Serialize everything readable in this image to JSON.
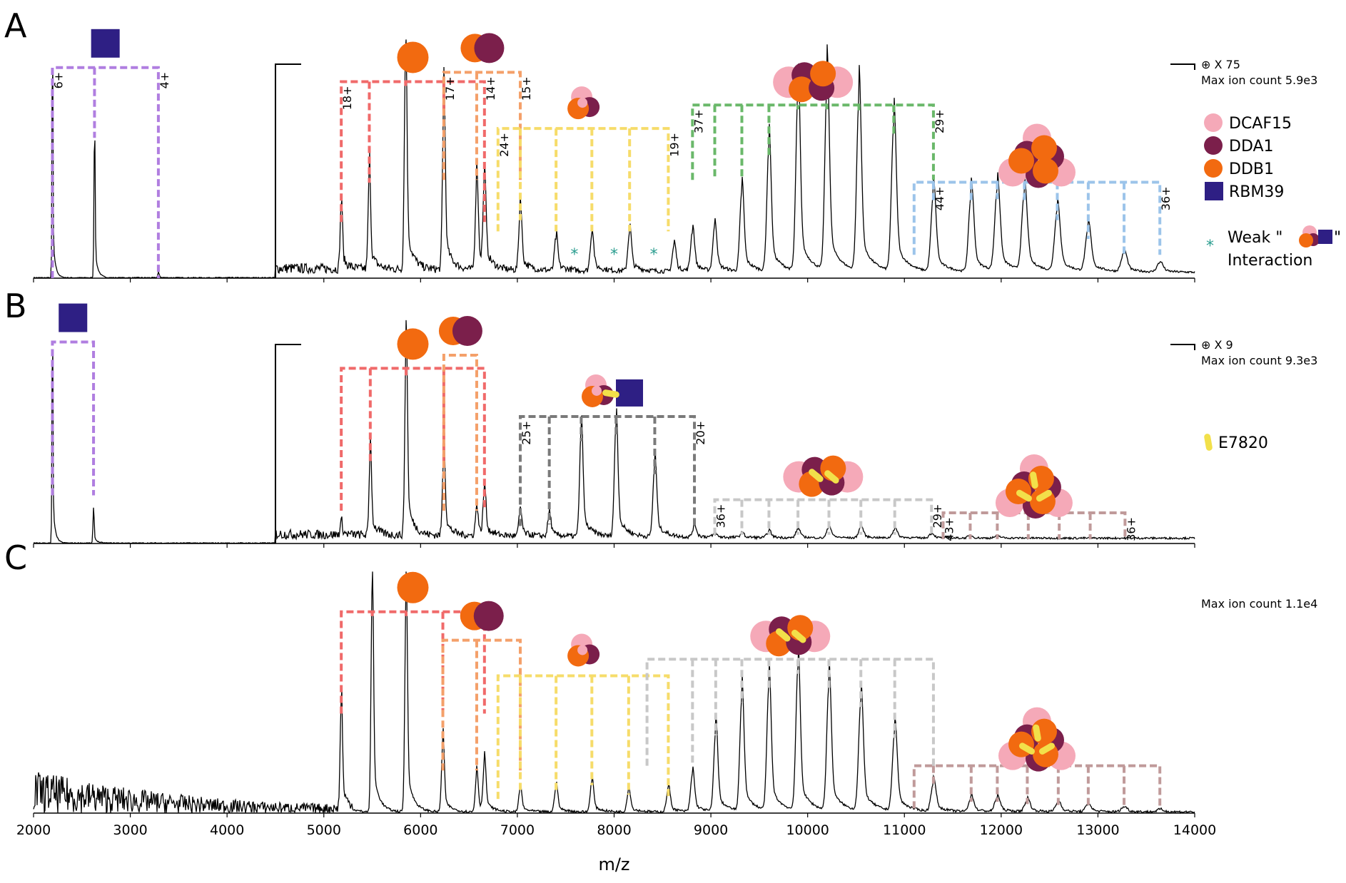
{
  "chart_data": {
    "type": "line",
    "xlabel": "m/z",
    "xlim": [
      2000,
      14000
    ],
    "xticks": [
      2000,
      3000,
      4000,
      5000,
      6000,
      7000,
      8000,
      9000,
      10000,
      11000,
      12000,
      13000,
      14000
    ],
    "colors": {
      "DCAF15": "#f5a9b8",
      "DDA1": "#7b1f4b",
      "DDB1": "#f26a10",
      "RBM39": "#2e1f84",
      "E7820": "#f2e04a",
      "weak_star": "#2a9d8f",
      "purple_series": "#b07ee0",
      "red_series": "#f06a6a",
      "orange_series": "#f4a06a",
      "yellow_series": "#f6dc6a",
      "green_series": "#6ab86a",
      "blue_series": "#9cc4ea",
      "darkgray_series": "#7a7a7a",
      "lightgray_series": "#c8c8c8",
      "mauve_series": "#c09a9a"
    },
    "panels": [
      {
        "label": "A",
        "zoom": "⊕ X 75",
        "max_ion": "Max ion count 5.9e3",
        "zoom_break_mz": 4500,
        "peaks": [
          {
            "mz": 2195,
            "h": 1.0
          },
          {
            "mz": 2630,
            "h": 0.62
          },
          {
            "mz": 3290,
            "h": 0.02
          },
          {
            "mz": 5180,
            "h": 0.28
          },
          {
            "mz": 5470,
            "h": 0.42
          },
          {
            "mz": 5845,
            "h": 0.95
          },
          {
            "mz": 6240,
            "h": 0.72
          },
          {
            "mz": 6580,
            "h": 0.38
          },
          {
            "mz": 6660,
            "h": 0.36
          },
          {
            "mz": 7030,
            "h": 0.26
          },
          {
            "mz": 7400,
            "h": 0.14
          },
          {
            "mz": 7770,
            "h": 0.16
          },
          {
            "mz": 8160,
            "h": 0.17
          },
          {
            "mz": 8620,
            "h": 0.11
          },
          {
            "mz": 8810,
            "h": 0.17
          },
          {
            "mz": 9040,
            "h": 0.19
          },
          {
            "mz": 9320,
            "h": 0.34
          },
          {
            "mz": 9600,
            "h": 0.53
          },
          {
            "mz": 9900,
            "h": 0.76
          },
          {
            "mz": 10200,
            "h": 0.79
          },
          {
            "mz": 10530,
            "h": 0.73
          },
          {
            "mz": 10890,
            "h": 0.62
          },
          {
            "mz": 11300,
            "h": 0.33
          },
          {
            "mz": 11690,
            "h": 0.33
          },
          {
            "mz": 11960,
            "h": 0.35
          },
          {
            "mz": 12240,
            "h": 0.33
          },
          {
            "mz": 12580,
            "h": 0.26
          },
          {
            "mz": 12900,
            "h": 0.18
          },
          {
            "mz": 13270,
            "h": 0.08
          },
          {
            "mz": 13640,
            "h": 0.04
          }
        ],
        "series": [
          {
            "name": "RBM39",
            "color": "purple_series",
            "mz": [
              2195,
              2630,
              3290
            ],
            "charge_labels": [
              {
                "mz": 2195,
                "text": "6+"
              },
              {
                "mz": 3290,
                "text": "4+"
              }
            ],
            "top": 0.9,
            "bottom": 0.0,
            "icon": "RBM39"
          },
          {
            "name": "DDB1",
            "color": "red_series",
            "mz": [
              5180,
              5470,
              5845,
              6240,
              6660
            ],
            "charge_labels": [
              {
                "mz": 5180,
                "text": "18+"
              }
            ],
            "top": 0.84,
            "bottom": 0.24,
            "icon": "DDB1"
          },
          {
            "name": "DDB1-DDA1",
            "color": "orange_series",
            "mz": [
              6240,
              6580,
              7030
            ],
            "charge_labels": [
              {
                "mz": 6240,
                "text": "17+"
              },
              {
                "mz": 6660,
                "text": "14+"
              },
              {
                "mz": 7030,
                "text": "15+"
              }
            ],
            "top": 0.88,
            "bottom": 0.42,
            "icon": "DDB1-DDA1"
          },
          {
            "name": "DCAF15-DDA1-DDB1",
            "color": "yellow_series",
            "mz": [
              6800,
              7030,
              7400,
              7770,
              8160,
              8560
            ],
            "charge_labels": [
              {
                "mz": 6800,
                "text": "24+"
              },
              {
                "mz": 8560,
                "text": "19+"
              }
            ],
            "top": 0.64,
            "bottom": 0.2,
            "icon": "trimer"
          },
          {
            "name": "dimer",
            "color": "green_series",
            "mz": [
              8810,
              9040,
              9320,
              9600,
              9900,
              10200,
              10530,
              10890,
              11300
            ],
            "charge_labels": [
              {
                "mz": 8810,
                "text": "37+"
              },
              {
                "mz": 11300,
                "text": "29+"
              }
            ],
            "top": 0.74,
            "bottom": 0.42,
            "icon": "dimer"
          },
          {
            "name": "trimer-of-trimers",
            "color": "blue_series",
            "mz": [
              11100,
              11300,
              11690,
              11960,
              12240,
              12580,
              12900,
              13270,
              13640
            ],
            "charge_labels": [
              {
                "mz": 11300,
                "text": "44+"
              },
              {
                "mz": 13640,
                "text": "36+"
              }
            ],
            "top": 0.41,
            "bottom": 0.1,
            "icon": "hexamer"
          }
        ],
        "stars_mz": [
          7590,
          8000,
          8410
        ]
      },
      {
        "label": "B",
        "zoom": "⊕ X 9",
        "max_ion": "Max ion count 9.3e3",
        "zoom_break_mz": 4500,
        "peaks": [
          {
            "mz": 2195,
            "h": 0.98
          },
          {
            "mz": 2620,
            "h": 0.16
          },
          {
            "mz": 5180,
            "h": 0.06
          },
          {
            "mz": 5480,
            "h": 0.38
          },
          {
            "mz": 5850,
            "h": 0.87
          },
          {
            "mz": 6240,
            "h": 0.38
          },
          {
            "mz": 6580,
            "h": 0.12
          },
          {
            "mz": 6660,
            "h": 0.2
          },
          {
            "mz": 7030,
            "h": 0.11
          },
          {
            "mz": 7330,
            "h": 0.1
          },
          {
            "mz": 7660,
            "h": 0.48
          },
          {
            "mz": 8020,
            "h": 0.51
          },
          {
            "mz": 8420,
            "h": 0.33
          },
          {
            "mz": 8830,
            "h": 0.05
          },
          {
            "mz": 9040,
            "h": 0.015
          },
          {
            "mz": 9320,
            "h": 0.02
          },
          {
            "mz": 9600,
            "h": 0.03
          },
          {
            "mz": 9900,
            "h": 0.04
          },
          {
            "mz": 10220,
            "h": 0.05
          },
          {
            "mz": 10550,
            "h": 0.05
          },
          {
            "mz": 10900,
            "h": 0.04
          },
          {
            "mz": 11280,
            "h": 0.02
          },
          {
            "mz": 11680,
            "h": 0.01
          },
          {
            "mz": 11960,
            "h": 0.01
          }
        ],
        "series": [
          {
            "name": "RBM39",
            "color": "purple_series",
            "mz": [
              2195,
              2620
            ],
            "charge_labels": [],
            "top": 0.92,
            "bottom": 0.22,
            "icon": "RBM39"
          },
          {
            "name": "DDB1",
            "color": "red_series",
            "mz": [
              5180,
              5480,
              5850,
              6240,
              6660
            ],
            "charge_labels": [],
            "top": 0.8,
            "bottom": 0.15,
            "icon": "DDB1"
          },
          {
            "name": "DDB1-DDA1",
            "color": "orange_series",
            "mz": [
              6240,
              6580
            ],
            "charge_labels": [],
            "top": 0.86,
            "bottom": 0.15,
            "icon": "DDB1-DDA1"
          },
          {
            "name": "trimer-E7820-RBM39",
            "color": "darkgray_series",
            "mz": [
              7030,
              7330,
              7660,
              8020,
              8420,
              8830
            ],
            "charge_labels": [
              {
                "mz": 7030,
                "text": "25+"
              },
              {
                "mz": 8830,
                "text": "20+"
              }
            ],
            "top": 0.58,
            "bottom": 0.08,
            "icon": "trimer-rbm39"
          },
          {
            "name": "dimer-E7820",
            "color": "lightgray_series",
            "mz": [
              9040,
              9320,
              9600,
              9900,
              10220,
              10550,
              10900,
              11280
            ],
            "charge_labels": [
              {
                "mz": 9040,
                "text": "36+"
              },
              {
                "mz": 11280,
                "text": "29+"
              }
            ],
            "top": 0.2,
            "bottom": 0.04,
            "icon": "dimer-e7820"
          },
          {
            "name": "hexamer-E7820",
            "color": "mauve_series",
            "mz": [
              11400,
              11680,
              11960,
              12280,
              12600,
              12920,
              13280
            ],
            "charge_labels": [
              {
                "mz": 11400,
                "text": "43+"
              },
              {
                "mz": 13280,
                "text": "36+"
              }
            ],
            "top": 0.14,
            "bottom": 0.02,
            "icon": "hexamer-e7820"
          }
        ],
        "stars_mz": []
      },
      {
        "label": "C",
        "zoom": "",
        "max_ion": "Max ion count 1.1e4",
        "zoom_break_mz": null,
        "peaks": [
          {
            "mz": 5180,
            "h": 0.46
          },
          {
            "mz": 5500,
            "h": 0.96
          },
          {
            "mz": 5850,
            "h": 0.9
          },
          {
            "mz": 6230,
            "h": 0.3
          },
          {
            "mz": 6580,
            "h": 0.16
          },
          {
            "mz": 6660,
            "h": 0.2
          },
          {
            "mz": 7030,
            "h": 0.1
          },
          {
            "mz": 7400,
            "h": 0.11
          },
          {
            "mz": 7770,
            "h": 0.13
          },
          {
            "mz": 8150,
            "h": 0.09
          },
          {
            "mz": 8560,
            "h": 0.1
          },
          {
            "mz": 8810,
            "h": 0.16
          },
          {
            "mz": 9050,
            "h": 0.34
          },
          {
            "mz": 9320,
            "h": 0.48
          },
          {
            "mz": 9600,
            "h": 0.53
          },
          {
            "mz": 9900,
            "h": 0.6
          },
          {
            "mz": 10220,
            "h": 0.53
          },
          {
            "mz": 10550,
            "h": 0.46
          },
          {
            "mz": 10900,
            "h": 0.33
          },
          {
            "mz": 11300,
            "h": 0.12
          },
          {
            "mz": 11690,
            "h": 0.06
          },
          {
            "mz": 11960,
            "h": 0.06
          },
          {
            "mz": 12270,
            "h": 0.05
          },
          {
            "mz": 12590,
            "h": 0.04
          },
          {
            "mz": 12900,
            "h": 0.03
          },
          {
            "mz": 13270,
            "h": 0.02
          },
          {
            "mz": 13640,
            "h": 0.01
          }
        ],
        "series": [
          {
            "name": "DDB1",
            "color": "red_series",
            "mz": [
              5180,
              5500,
              5850,
              6230,
              6660
            ],
            "charge_labels": [],
            "top": 0.85,
            "bottom": 0.42,
            "icon": "DDB1"
          },
          {
            "name": "DDB1-DDA1",
            "color": "orange_series",
            "mz": [
              6230,
              6580,
              7030
            ],
            "charge_labels": [],
            "top": 0.73,
            "bottom": 0.18,
            "icon": "DDB1-DDA1"
          },
          {
            "name": "trimer",
            "color": "yellow_series",
            "mz": [
              6800,
              7030,
              7400,
              7770,
              8150,
              8560
            ],
            "charge_labels": [],
            "top": 0.58,
            "bottom": 0.06,
            "icon": "trimer"
          },
          {
            "name": "dimer-E7820",
            "color": "lightgray_series",
            "mz": [
              8340,
              8810,
              9050,
              9320,
              9600,
              9900,
              10220,
              10550,
              10900,
              11300
            ],
            "charge_labels": [],
            "top": 0.65,
            "bottom": 0.2,
            "icon": "dimer-e7820"
          },
          {
            "name": "hexamer-E7820",
            "color": "mauve_series",
            "mz": [
              11100,
              11300,
              11690,
              11960,
              12270,
              12590,
              12900,
              13270,
              13640
            ],
            "charge_labels": [],
            "top": 0.2,
            "bottom": 0.02,
            "icon": "hexamer-e7820"
          }
        ],
        "stars_mz": []
      }
    ],
    "legend": [
      {
        "name": "DCAF15",
        "shape": "circle",
        "color": "DCAF15"
      },
      {
        "name": "DDA1",
        "shape": "circle",
        "color": "DDA1"
      },
      {
        "name": "DDB1",
        "shape": "circle",
        "color": "DDB1"
      },
      {
        "name": "RBM39",
        "shape": "square",
        "color": "RBM39"
      }
    ],
    "weak_interaction": {
      "prefix": "Weak \"",
      "suffix": "\"",
      "second_line": "Interaction"
    },
    "drug_legend": {
      "name": "E7820"
    }
  }
}
